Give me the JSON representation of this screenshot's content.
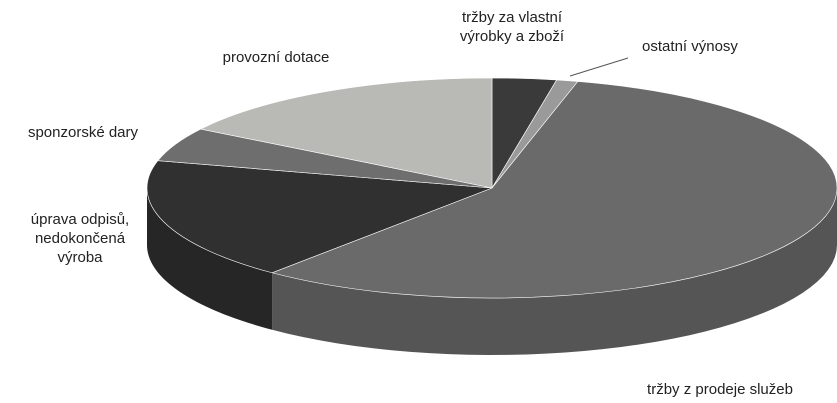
{
  "chart_data": {
    "type": "pie3d",
    "categories": [
      "tržby za vlastní výrobky a zboží",
      "ostatní výnosy",
      "tržby z prodeje služeb",
      "úprava odpisů, nedokončená výroba",
      "sponzorské dary",
      "provozní dotace"
    ],
    "values": [
      3,
      1,
      57,
      18,
      5,
      16
    ],
    "colors": [
      "#3a3a3a",
      "#9a9a9a",
      "#6a6a6a",
      "#303030",
      "#6e6e6e",
      "#b9b9b6"
    ]
  }
}
